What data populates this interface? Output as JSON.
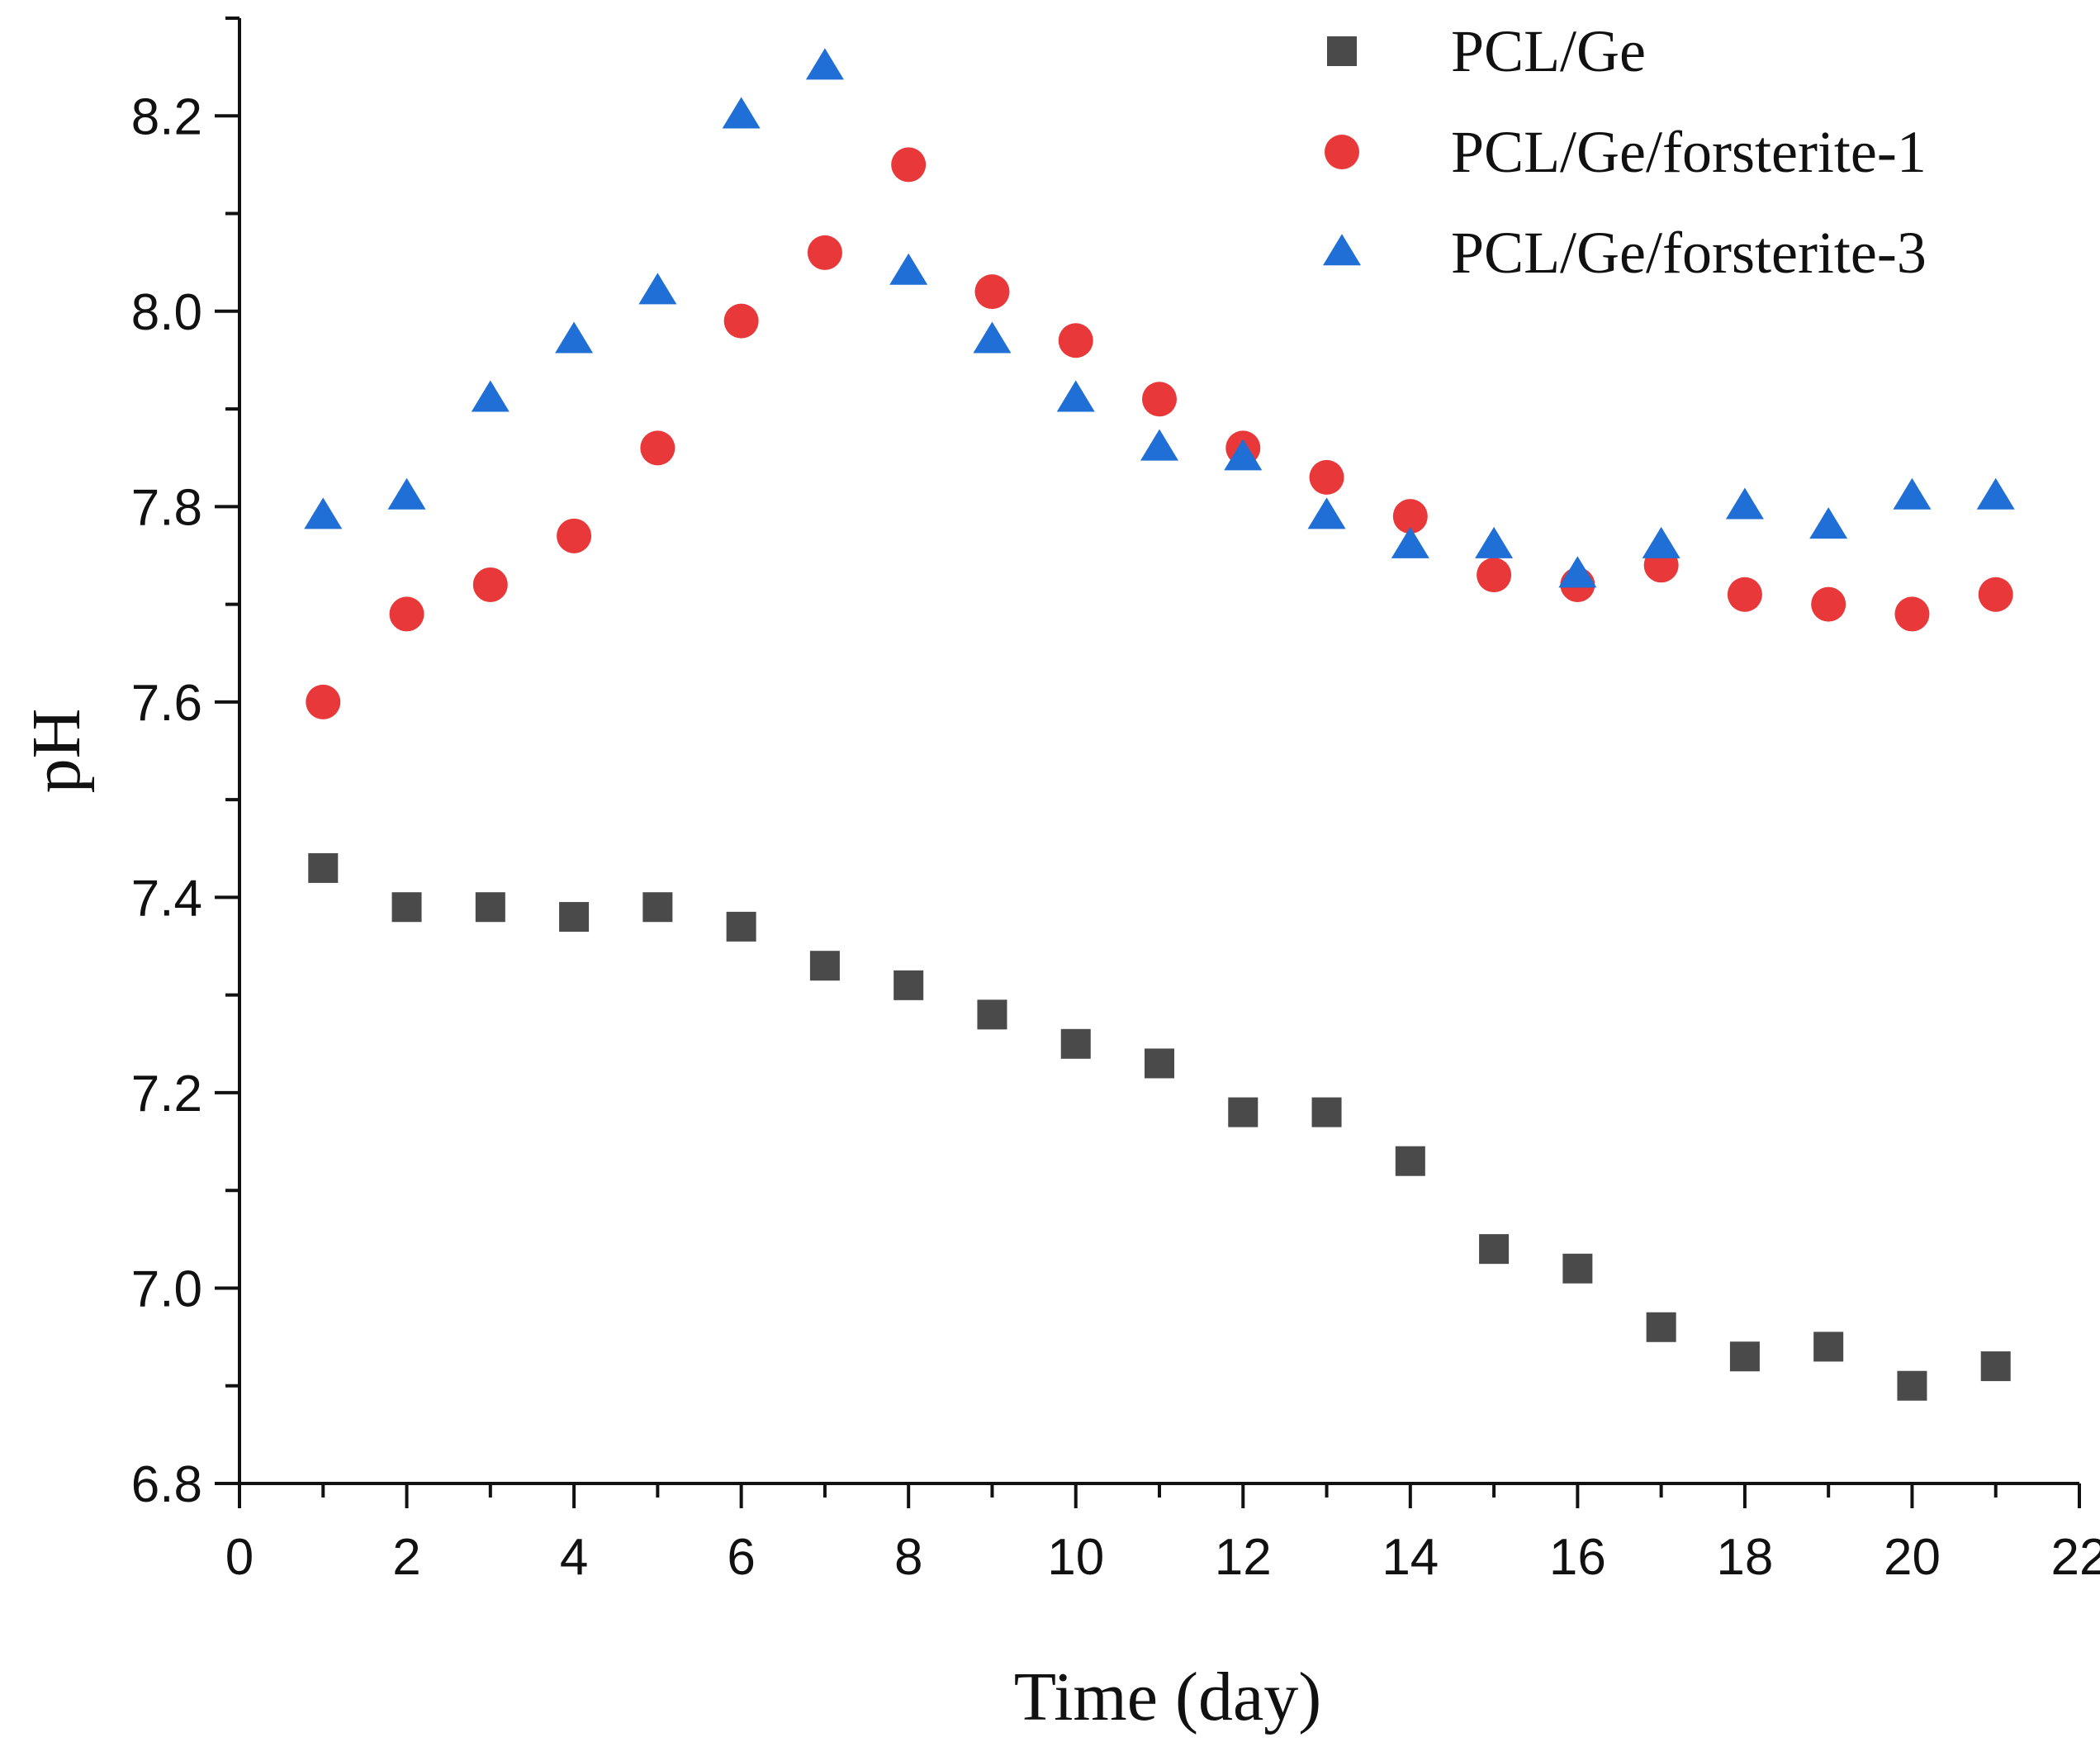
{
  "chart_data": {
    "type": "scatter",
    "title": "",
    "xlabel": "Time (day)",
    "ylabel": "pH",
    "xlim": [
      0,
      22
    ],
    "ylim": [
      6.8,
      8.3
    ],
    "xticks": [
      "0",
      "2",
      "4",
      "6",
      "8",
      "10",
      "12",
      "14",
      "16",
      "18",
      "20",
      "22"
    ],
    "yticks": [
      "6.8",
      "7.0",
      "7.2",
      "7.4",
      "7.6",
      "7.8",
      "8.0",
      "8.2"
    ],
    "legend_position": "top-right",
    "grid": false,
    "x": [
      1,
      2,
      3,
      4,
      5,
      6,
      7,
      8,
      9,
      10,
      11,
      12,
      13,
      14,
      15,
      16,
      17,
      18,
      19,
      20,
      21
    ],
    "series": [
      {
        "name": "PCL/Ge",
        "marker": "square",
        "color": "#4a4a4a",
        "values": [
          7.43,
          7.39,
          7.39,
          7.38,
          7.39,
          7.37,
          7.33,
          7.31,
          7.28,
          7.25,
          7.23,
          7.18,
          7.18,
          7.13,
          7.04,
          7.02,
          6.96,
          6.93,
          6.94,
          6.9,
          6.92
        ]
      },
      {
        "name": "PCL/Ge/forsterite-1",
        "marker": "circle",
        "color": "#e8383a",
        "values": [
          7.6,
          7.69,
          7.72,
          7.77,
          7.86,
          7.99,
          8.06,
          8.15,
          8.02,
          7.97,
          7.91,
          7.86,
          7.83,
          7.79,
          7.73,
          7.72,
          7.74,
          7.71,
          7.7,
          7.69,
          7.71
        ]
      },
      {
        "name": "PCL/Ge/forsterite-3",
        "marker": "triangle",
        "color": "#1f6fd6",
        "values": [
          7.79,
          7.81,
          7.91,
          7.97,
          8.02,
          8.2,
          8.25,
          8.04,
          7.97,
          7.91,
          7.86,
          7.85,
          7.79,
          7.76,
          7.76,
          7.73,
          7.76,
          7.8,
          7.78,
          7.81,
          7.81
        ]
      }
    ]
  }
}
